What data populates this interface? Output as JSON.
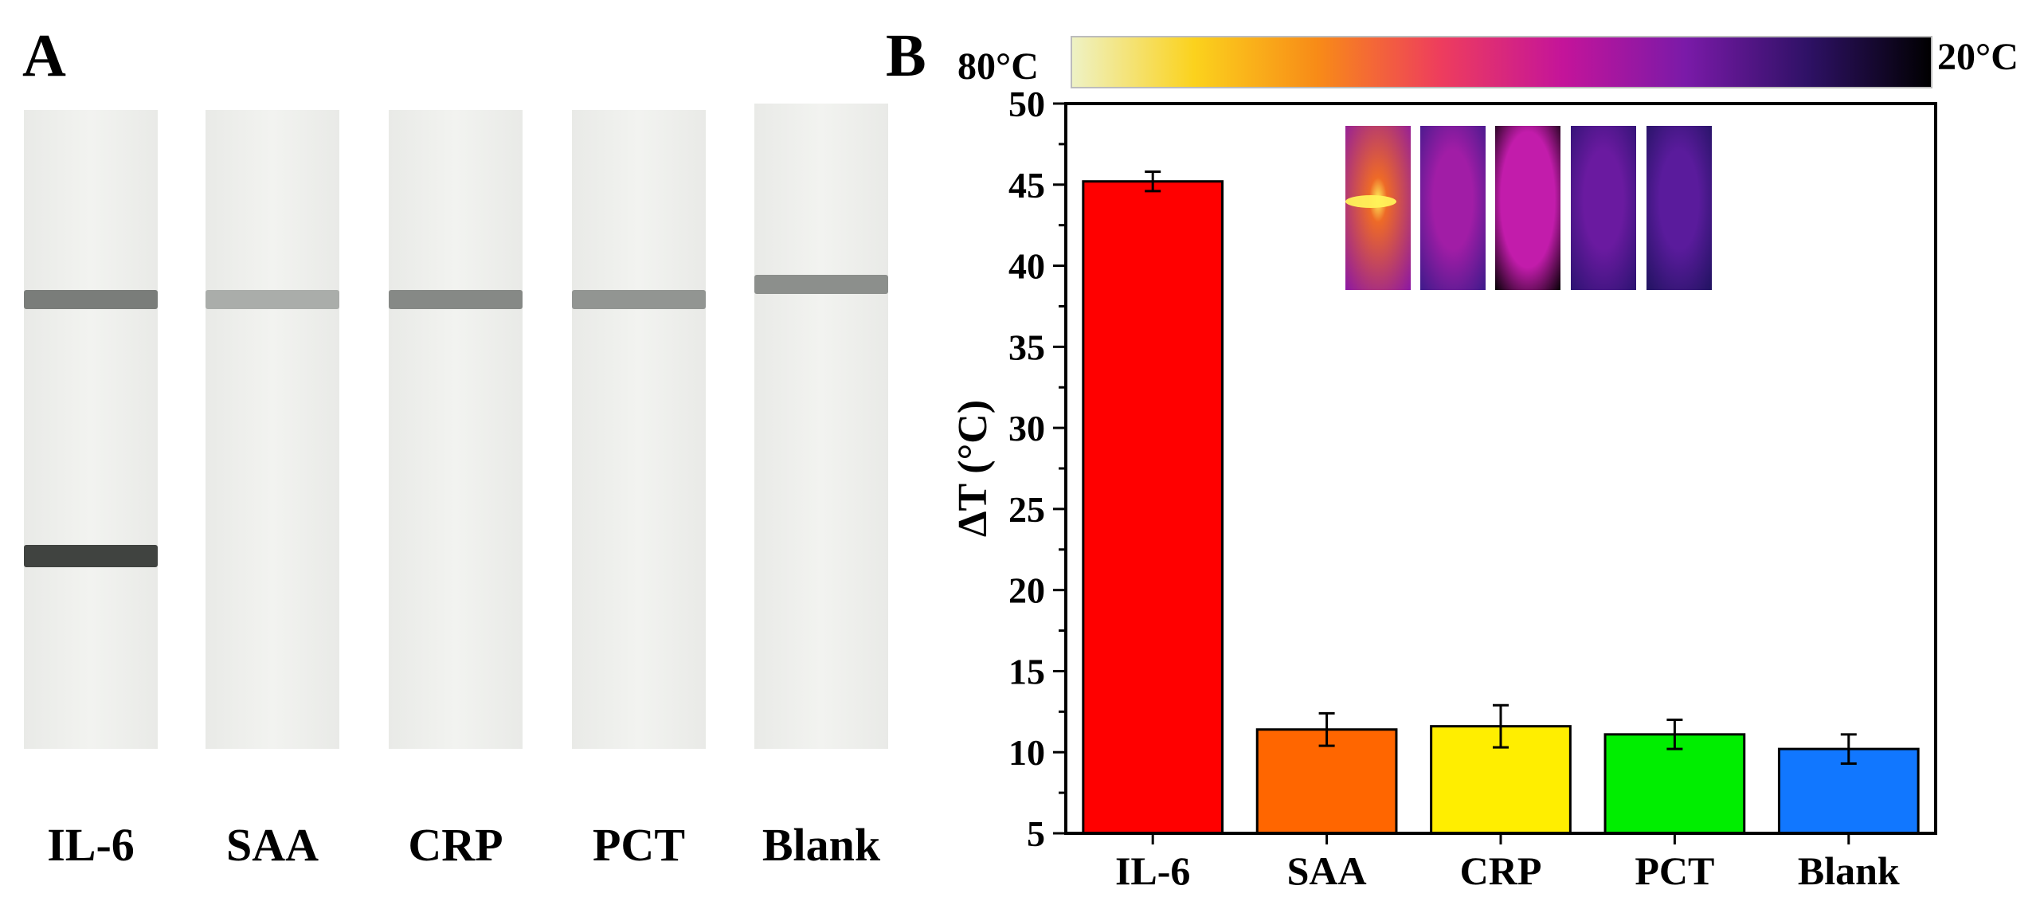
{
  "panel_a": {
    "label": "A",
    "strips": [
      {
        "name": "IL-6",
        "control_line": 0.65,
        "test_line": 0.85
      },
      {
        "name": "SAA",
        "control_line": 0.25,
        "test_line": 0.0
      },
      {
        "name": "CRP",
        "control_line": 0.55,
        "test_line": 0.0
      },
      {
        "name": "PCT",
        "control_line": 0.45,
        "test_line": 0.0
      },
      {
        "name": "Blank",
        "control_line": 0.5,
        "test_line": 0.0
      }
    ]
  },
  "panel_b": {
    "label": "B",
    "colorbar": {
      "low_label": "20°C",
      "high_label": "80°C",
      "colors": [
        "#eef2c6",
        "#fbd21d",
        "#f88b17",
        "#ee3d5d",
        "#c4149a",
        "#7a1aa8",
        "#2e1165",
        "#000000"
      ]
    },
    "thermal_images": [
      {
        "name": "IL-6",
        "hotspot": "#fff25a",
        "core": "#ee6a27",
        "edge": "#8a16a6"
      },
      {
        "name": "SAA",
        "hotspot": "",
        "core": "#a11da6",
        "edge": "#3b1a8a"
      },
      {
        "name": "CRP",
        "hotspot": "",
        "core": "#c21cab",
        "edge": "#000000"
      },
      {
        "name": "PCT",
        "hotspot": "",
        "core": "#6a1aa0",
        "edge": "#2a1370"
      },
      {
        "name": "Blank",
        "hotspot": "",
        "core": "#5a1b9c",
        "edge": "#1f135f"
      }
    ]
  },
  "chart_data": {
    "type": "bar",
    "categories": [
      "IL-6",
      "SAA",
      "CRP",
      "PCT",
      "Blank"
    ],
    "values": [
      45.2,
      11.4,
      11.6,
      11.1,
      10.2
    ],
    "errors": [
      0.6,
      1.0,
      1.3,
      0.9,
      0.9
    ],
    "colors": [
      "#ff0000",
      "#ff6600",
      "#ffee00",
      "#00ee00",
      "#1177ff"
    ],
    "title": "",
    "xlabel": "",
    "ylabel": "ΔT (°C)",
    "ylim": [
      5,
      50
    ],
    "yticks": [
      5,
      10,
      15,
      20,
      25,
      30,
      35,
      40,
      45,
      50
    ],
    "grid": false
  }
}
